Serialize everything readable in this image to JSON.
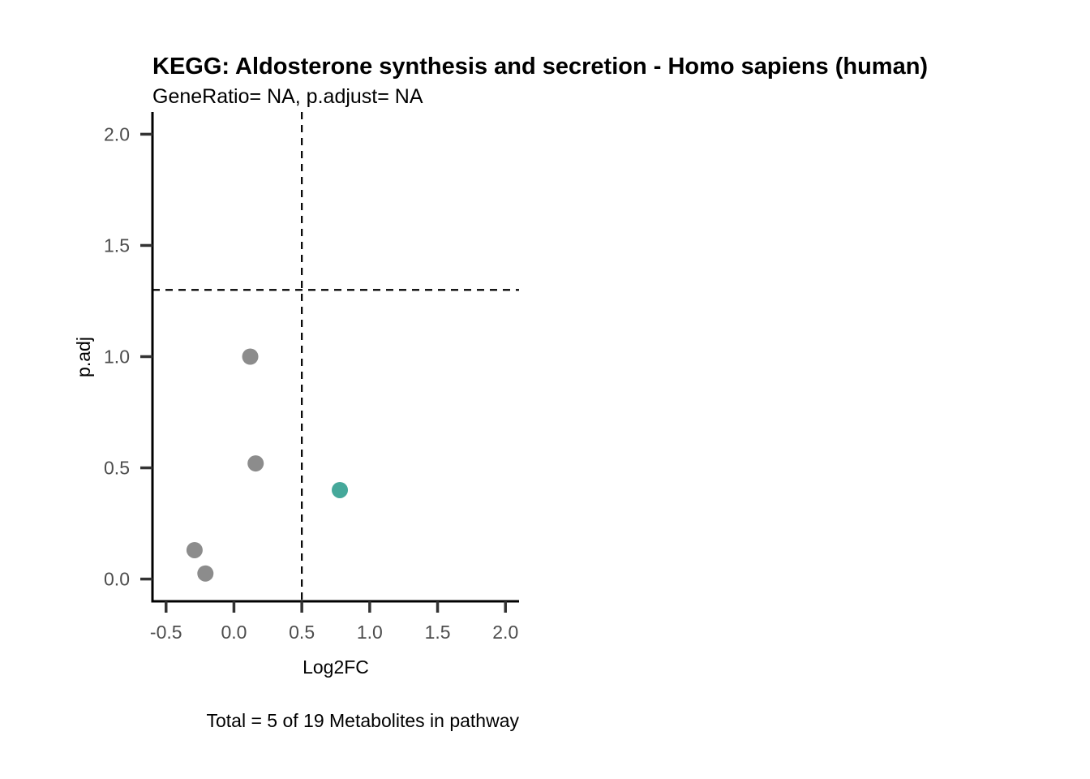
{
  "chart_data": {
    "type": "scatter",
    "title": "KEGG: Aldosterone synthesis and secretion - Homo sapiens (human)",
    "subtitle": "GeneRatio= NA, p.adjust= NA",
    "xlabel": "Log2FC",
    "ylabel": "p.adj",
    "caption": "Total = 5 of 19 Metabolites in pathway",
    "xlim": [
      -0.6,
      2.1
    ],
    "ylim": [
      -0.1,
      2.1
    ],
    "x_ticks": [
      -0.5,
      0.0,
      0.5,
      1.0,
      1.5,
      2.0
    ],
    "x_tick_labels": [
      "-0.5",
      "0.0",
      "0.5",
      "1.0",
      "1.5",
      "2.0"
    ],
    "y_ticks": [
      0.0,
      0.5,
      1.0,
      1.5,
      2.0
    ],
    "y_tick_labels": [
      "0.0",
      "0.5",
      "1.0",
      "1.5",
      "2.0"
    ],
    "reference_lines": {
      "vertical_x": 0.5,
      "horizontal_y": 1.3,
      "style": "dashed"
    },
    "grid": false,
    "legend": "none",
    "colors": {
      "not_significant": "#8c8c8c",
      "highlight": "#45a89a"
    },
    "points": [
      {
        "x": 0.12,
        "y": 1.0,
        "group": "not_significant"
      },
      {
        "x": 0.16,
        "y": 0.52,
        "group": "not_significant"
      },
      {
        "x": 0.78,
        "y": 0.4,
        "group": "highlight"
      },
      {
        "x": -0.29,
        "y": 0.13,
        "group": "not_significant"
      },
      {
        "x": -0.21,
        "y": 0.025,
        "group": "not_significant"
      }
    ]
  }
}
